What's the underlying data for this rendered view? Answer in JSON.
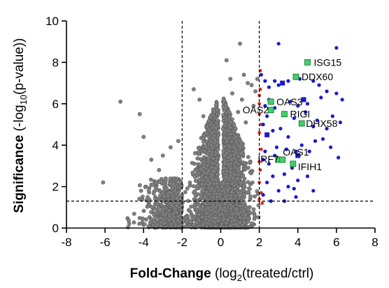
{
  "chart_data": {
    "type": "scatter",
    "xlim": [
      -8,
      8
    ],
    "ylim": [
      0,
      10
    ],
    "x_ticks": [
      "-8",
      "-6",
      "-4",
      "-2",
      "0",
      "2",
      "4",
      "6",
      "8"
    ],
    "y_ticks": [
      "0",
      "2",
      "4",
      "6",
      "8",
      "10"
    ],
    "xlabel": {
      "bold": "Fold-Change",
      "rest_a": " (log",
      "sub": "2",
      "rest_b": "(treated/ctrl)"
    },
    "ylabel": {
      "bold": "Significance",
      "rest_a": " (-log",
      "sub": "10",
      "rest_b": "(p-value))"
    },
    "thresholds": {
      "x_neg": -2,
      "x_pos": 2,
      "y": 1.3
    },
    "colors": {
      "background": "#808080",
      "background_edge": "#5a5a5a",
      "upregulated": "#1a1acd",
      "threshold_red": "#e0281e",
      "labeled_gene": "#3fd26a",
      "labeled_gene_edge": "#1b6b2e",
      "blue_square": "#1a1acd"
    },
    "labeled_genes": [
      {
        "name": "ISG15",
        "x": 4.5,
        "y": 8.0
      },
      {
        "name": "DDX60",
        "x": 3.9,
        "y": 7.3
      },
      {
        "name": "OAS3",
        "x": 2.6,
        "y": 6.1
      },
      {
        "name": "OAS2",
        "x": 2.6,
        "y": 5.7
      },
      {
        "name": "RIGI",
        "x": 3.3,
        "y": 5.5
      },
      {
        "name": "DHX58",
        "x": 4.2,
        "y": 5.05
      },
      {
        "name": "OAS1",
        "x": 3.0,
        "y": 3.3
      },
      {
        "name": "IRF7",
        "x": 3.2,
        "y": 3.3
      },
      {
        "name": "IFIH1",
        "x": 3.75,
        "y": 3.1
      }
    ],
    "blue_squares": [
      {
        "x": 3.2,
        "y": 7.0
      },
      {
        "x": 4.3,
        "y": 6.2
      },
      {
        "x": 2.4,
        "y": 4.5
      },
      {
        "x": 4.0,
        "y": 3.5
      }
    ],
    "upregulated_points": [
      [
        2.1,
        7.4
      ],
      [
        2.3,
        7.1
      ],
      [
        2.8,
        7.1
      ],
      [
        2.5,
        6.8
      ],
      [
        3.0,
        6.9
      ],
      [
        3.5,
        7.1
      ],
      [
        4.1,
        7.2
      ],
      [
        4.8,
        7.1
      ],
      [
        5.1,
        6.9
      ],
      [
        5.5,
        6.6
      ],
      [
        6.0,
        6.5
      ],
      [
        6.0,
        8.7
      ],
      [
        6.3,
        6.2
      ],
      [
        6.2,
        5.1
      ],
      [
        5.8,
        5.4
      ],
      [
        5.5,
        4.8
      ],
      [
        5.0,
        5.2
      ],
      [
        4.8,
        4.9
      ],
      [
        4.4,
        5.6
      ],
      [
        4.0,
        5.9
      ],
      [
        3.8,
        5.3
      ],
      [
        3.5,
        4.4
      ],
      [
        3.1,
        4.8
      ],
      [
        2.7,
        4.7
      ],
      [
        2.2,
        5.0
      ],
      [
        2.3,
        5.9
      ],
      [
        2.5,
        6.2
      ],
      [
        2.4,
        5.4
      ],
      [
        2.8,
        5.8
      ],
      [
        3.6,
        6.1
      ],
      [
        4.5,
        6.0
      ],
      [
        5.2,
        6.3
      ],
      [
        5.3,
        4.3
      ],
      [
        5.7,
        3.9
      ],
      [
        4.9,
        4.2
      ],
      [
        4.6,
        3.7
      ],
      [
        4.2,
        4.0
      ],
      [
        3.9,
        3.7
      ],
      [
        3.4,
        3.8
      ],
      [
        2.9,
        3.9
      ],
      [
        2.3,
        3.7
      ],
      [
        2.5,
        3.1
      ],
      [
        2.8,
        3.5
      ],
      [
        3.3,
        2.6
      ],
      [
        3.7,
        2.9
      ],
      [
        4.0,
        2.3
      ],
      [
        4.5,
        2.5
      ],
      [
        2.4,
        2.2
      ],
      [
        2.7,
        2.5
      ],
      [
        3.0,
        1.8
      ],
      [
        3.5,
        2.0
      ],
      [
        3.9,
        1.5
      ],
      [
        2.2,
        1.6
      ],
      [
        2.6,
        1.3
      ],
      [
        3.3,
        1.3
      ],
      [
        3.8,
        1.9
      ],
      [
        4.8,
        1.8
      ],
      [
        6.1,
        3.4
      ],
      [
        3.0,
        8.9
      ],
      [
        2.2,
        3.3
      ]
    ],
    "threshold_points": [
      [
        2.0,
        6.4
      ],
      [
        2.05,
        6.7
      ],
      [
        2.0,
        5.5
      ],
      [
        2.1,
        5.0
      ],
      [
        2.0,
        4.6
      ],
      [
        2.1,
        3.8
      ],
      [
        2.0,
        3.2
      ],
      [
        2.05,
        2.8
      ],
      [
        2.0,
        2.2
      ],
      [
        2.1,
        1.7
      ],
      [
        2.0,
        1.4
      ],
      [
        2.15,
        1.2
      ],
      [
        2.05,
        7.6
      ],
      [
        2.0,
        6.0
      ]
    ],
    "outlier_points": [
      [
        -6.1,
        2.2
      ],
      [
        -5.2,
        6.1
      ],
      [
        -4.2,
        5.5
      ],
      [
        -4.0,
        4.4
      ],
      [
        -3.6,
        3.3
      ],
      [
        -3.2,
        2.8
      ],
      [
        -3.0,
        3.5
      ],
      [
        -2.8,
        1.9
      ],
      [
        -2.6,
        3.9
      ],
      [
        -2.4,
        2.4
      ],
      [
        -2.2,
        4.2
      ],
      [
        -1.4,
        6.7
      ],
      [
        -1.1,
        6.2
      ],
      [
        -0.9,
        5.4
      ],
      [
        -0.7,
        4.9
      ],
      [
        0.6,
        6.5
      ],
      [
        0.9,
        5.6
      ],
      [
        1.0,
        8.9
      ],
      [
        1.2,
        7.4
      ],
      [
        1.4,
        7.0
      ],
      [
        1.6,
        6.9
      ],
      [
        1.7,
        5.9
      ],
      [
        1.8,
        6.6
      ],
      [
        1.9,
        7.2
      ],
      [
        0.5,
        7.2
      ],
      [
        0.3,
        8.1
      ],
      [
        1.1,
        6.2
      ],
      [
        1.3,
        5.1
      ],
      [
        0.8,
        4.4
      ]
    ],
    "cloud_seed": 20240613
  }
}
